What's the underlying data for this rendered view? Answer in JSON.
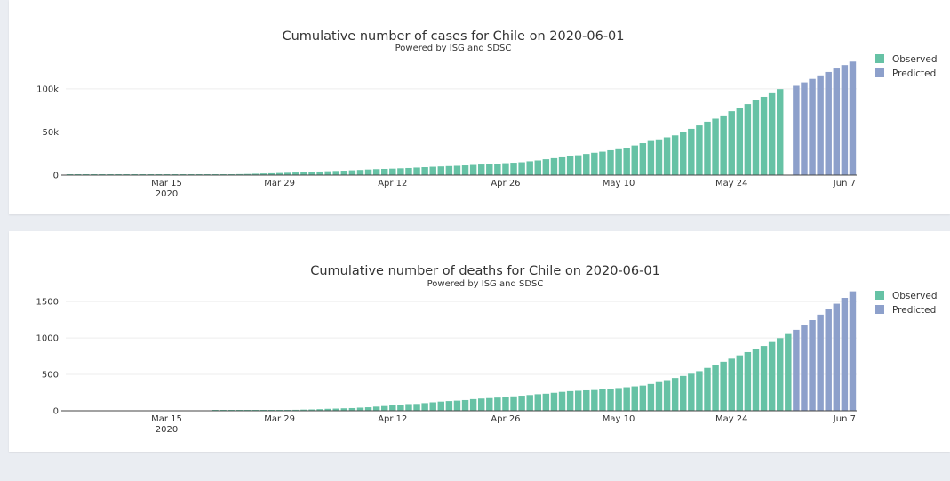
{
  "colors": {
    "observed": "#66c2a5",
    "predicted": "#8da0cb"
  },
  "chart_data": [
    {
      "type": "bar",
      "title": "Cumulative number of cases for Chile on 2020-06-01",
      "subtitle": "Powered by ISG and SDSC",
      "xlabel": "",
      "ylabel": "",
      "x_start": "2020-03-03",
      "x_end": "2020-06-08",
      "x_ticks": [
        {
          "date": "2020-03-15",
          "label": "Mar 15",
          "sub": "2020"
        },
        {
          "date": "2020-03-29",
          "label": "Mar 29",
          "sub": ""
        },
        {
          "date": "2020-04-12",
          "label": "Apr 12",
          "sub": ""
        },
        {
          "date": "2020-04-26",
          "label": "Apr 26",
          "sub": ""
        },
        {
          "date": "2020-05-10",
          "label": "May 10",
          "sub": ""
        },
        {
          "date": "2020-05-24",
          "label": "May 24",
          "sub": ""
        },
        {
          "date": "2020-06-07",
          "label": "Jun 7",
          "sub": ""
        }
      ],
      "y_ticks": [
        {
          "value": 0,
          "label": "0"
        },
        {
          "value": 50000,
          "label": "50k"
        },
        {
          "value": 100000,
          "label": "100k"
        }
      ],
      "ylim": [
        0,
        139000
      ],
      "grid": true,
      "legend_position": "top-right",
      "series": [
        {
          "name": "Observed",
          "color_key": "observed",
          "values": [
            1,
            3,
            5,
            6,
            8,
            13,
            17,
            23,
            33,
            43,
            61,
            75,
            155,
            201,
            238,
            342,
            434,
            537,
            632,
            746,
            922,
            1142,
            1306,
            1610,
            1909,
            2139,
            2449,
            2738,
            3031,
            3404,
            3737,
            4161,
            4471,
            4815,
            5116,
            5546,
            5972,
            6501,
            6927,
            7213,
            7525,
            7917,
            8273,
            8807,
            9252,
            9730,
            10088,
            10507,
            10832,
            11296,
            11812,
            12306,
            12858,
            13331,
            13813,
            14365,
            14885,
            16023,
            17008,
            18435,
            19663,
            20643,
            22016,
            23048,
            24581,
            25972,
            27219,
            28866,
            30063,
            31721,
            34381,
            37040,
            39542,
            41428,
            43781,
            46059,
            49579,
            53617,
            57581,
            61857,
            65393,
            69102,
            73997,
            77961,
            82289,
            86943,
            90638,
            94858,
            99688
          ],
          "x_start": "2020-03-03"
        },
        {
          "name": "Predicted",
          "color_key": "predicted",
          "values": [
            103500,
            107500,
            111500,
            115500,
            119500,
            123500,
            127500,
            131500
          ],
          "x_start": "2020-06-01"
        }
      ]
    },
    {
      "type": "bar",
      "title": "Cumulative number of deaths for Chile on 2020-06-01",
      "subtitle": "Powered by ISG and SDSC",
      "xlabel": "",
      "ylabel": "",
      "x_start": "2020-03-03",
      "x_end": "2020-06-08",
      "x_ticks": [
        {
          "date": "2020-03-15",
          "label": "Mar 15",
          "sub": "2020"
        },
        {
          "date": "2020-03-29",
          "label": "Mar 29",
          "sub": ""
        },
        {
          "date": "2020-04-12",
          "label": "Apr 12",
          "sub": ""
        },
        {
          "date": "2020-04-26",
          "label": "Apr 26",
          "sub": ""
        },
        {
          "date": "2020-05-10",
          "label": "May 10",
          "sub": ""
        },
        {
          "date": "2020-05-24",
          "label": "May 24",
          "sub": ""
        },
        {
          "date": "2020-06-07",
          "label": "Jun 7",
          "sub": ""
        }
      ],
      "y_ticks": [
        {
          "value": 0,
          "label": "0"
        },
        {
          "value": 500,
          "label": "500"
        },
        {
          "value": 1000,
          "label": "1000"
        },
        {
          "value": 1500,
          "label": "1500"
        }
      ],
      "ylim": [
        0,
        1660
      ],
      "grid": true,
      "legend_position": "top-right",
      "series": [
        {
          "name": "Observed",
          "color_key": "observed",
          "values": [
            0,
            0,
            0,
            0,
            0,
            0,
            0,
            0,
            0,
            0,
            0,
            0,
            0,
            0,
            0,
            0,
            0,
            0,
            1,
            1,
            2,
            3,
            4,
            5,
            6,
            7,
            9,
            11,
            13,
            16,
            18,
            22,
            27,
            30,
            34,
            37,
            43,
            48,
            57,
            65,
            73,
            82,
            92,
            94,
            105,
            116,
            126,
            133,
            139,
            147,
            160,
            168,
            174,
            181,
            189,
            198,
            207,
            216,
            227,
            234,
            247,
            260,
            270,
            275,
            281,
            285,
            294,
            304,
            312,
            323,
            335,
            346,
            368,
            394,
            421,
            450,
            478,
            509,
            544,
            589,
            630,
            673,
            716,
            761,
            806,
            847,
            890,
            944,
            997,
            1054
          ],
          "x_start": "2020-03-03"
        },
        {
          "name": "Predicted",
          "color_key": "predicted",
          "values": [
            1112,
            1175,
            1245,
            1320,
            1396,
            1470,
            1550,
            1640
          ],
          "x_start": "2020-06-01"
        }
      ]
    }
  ]
}
